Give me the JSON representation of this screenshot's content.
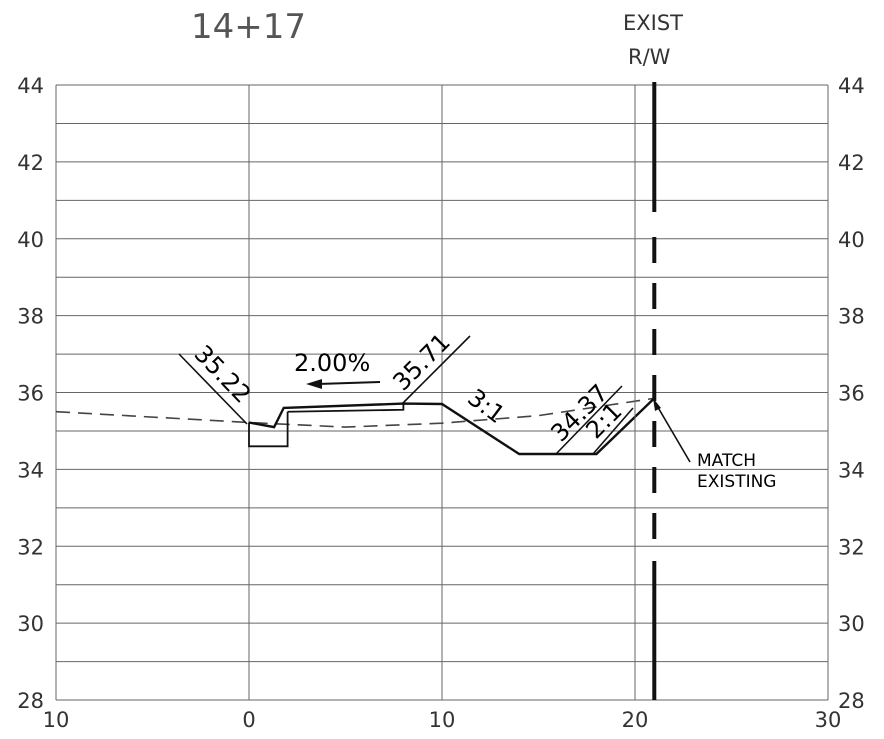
{
  "station": "14+17",
  "right_of_way": {
    "line1": "EXIST",
    "line2": "R/W"
  },
  "match_note": {
    "line1": "MATCH",
    "line2": "EXISTING"
  },
  "annotations": {
    "left_elev": "35.22",
    "slope_pct": "2.00%",
    "right_elev": "35.71",
    "slope_3to1": "3:1",
    "ditch_elev": "34.37",
    "slope_2to1": "2:1"
  },
  "chart_data": {
    "type": "cross-section",
    "station": "14+17",
    "x_range": [
      -10,
      30
    ],
    "y_range": [
      28,
      44
    ],
    "x_tick_labels": [
      "10",
      "0",
      "10",
      "20",
      "30"
    ],
    "y_tick_labels": [
      "28",
      "30",
      "32",
      "34",
      "36",
      "38",
      "40",
      "42",
      "44"
    ],
    "grid": true,
    "existing_ground": [
      [
        -10,
        35.5
      ],
      [
        0,
        35.22
      ],
      [
        5,
        35.1
      ],
      [
        10,
        35.2
      ],
      [
        15,
        35.4
      ],
      [
        21,
        35.85
      ]
    ],
    "proposed_section": [
      [
        0,
        35.22
      ],
      [
        1.3,
        35.1
      ],
      [
        1.8,
        35.6
      ],
      [
        8,
        35.71
      ],
      [
        10,
        35.7
      ],
      [
        14,
        34.4
      ],
      [
        18,
        34.4
      ],
      [
        21,
        35.85
      ]
    ],
    "right_of_way_x": 21
  }
}
